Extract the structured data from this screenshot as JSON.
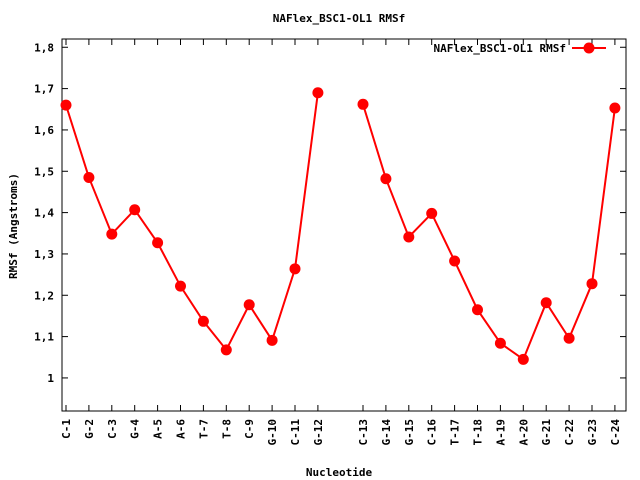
{
  "chart_data": {
    "type": "line",
    "title": "NAFlex_BSC1-OL1 RMSf",
    "xlabel": "Nucleotide",
    "ylabel": "RMSf (Angstroms)",
    "ylim": [
      0.92,
      1.82
    ],
    "yticks": [
      "1",
      "1,1",
      "1,2",
      "1,3",
      "1,4",
      "1,5",
      "1,6",
      "1,7",
      "1,8"
    ],
    "ytick_values": [
      1.0,
      1.1,
      1.2,
      1.3,
      1.4,
      1.5,
      1.6,
      1.7,
      1.8
    ],
    "grid": false,
    "legend_position": "top-right",
    "categories": [
      "C-1",
      "G-2",
      "C-3",
      "G-4",
      "A-5",
      "A-6",
      "T-7",
      "T-8",
      "C-9",
      "G-10",
      "C-11",
      "G-12",
      "C-13",
      "G-14",
      "G-15",
      "C-16",
      "T-17",
      "T-18",
      "A-19",
      "A-20",
      "G-21",
      "C-22",
      "G-23",
      "C-24"
    ],
    "series": [
      {
        "name": "NAFlex_BSC1-OL1 RMSf",
        "color": "#ff0000",
        "strands": [
          [
            1.66,
            1.485,
            1.348,
            1.407,
            1.327,
            1.222,
            1.137,
            1.068,
            1.177,
            1.091,
            1.264,
            1.69
          ],
          [
            1.662,
            1.482,
            1.341,
            1.398,
            1.283,
            1.165,
            1.084,
            1.045,
            1.182,
            1.096,
            1.228,
            1.653
          ]
        ]
      }
    ]
  }
}
